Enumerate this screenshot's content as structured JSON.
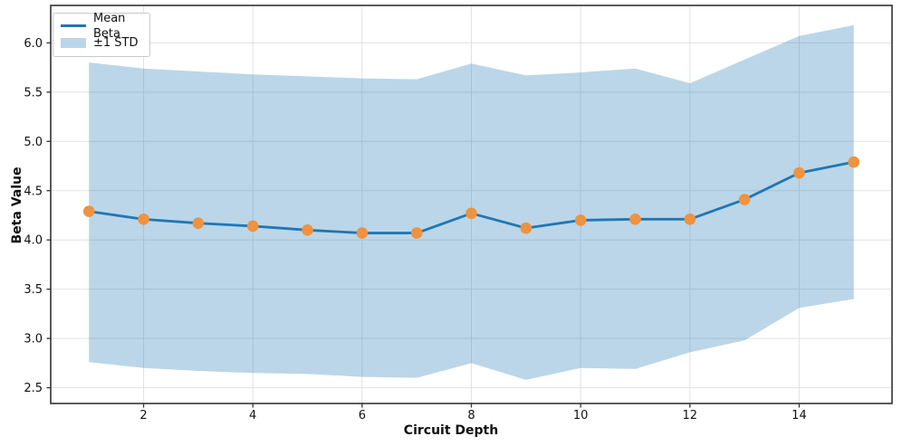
{
  "chart_data": {
    "type": "line",
    "title": "",
    "xlabel": "Circuit Depth",
    "ylabel": "Beta Value",
    "x": [
      1,
      2,
      3,
      4,
      5,
      6,
      7,
      8,
      9,
      10,
      11,
      12,
      13,
      14,
      15
    ],
    "series": [
      {
        "name": "Mean Beta",
        "kind": "line-with-markers",
        "values": [
          4.29,
          4.21,
          4.17,
          4.14,
          4.1,
          4.07,
          4.07,
          4.27,
          4.12,
          4.2,
          4.21,
          4.21,
          4.41,
          4.68,
          4.79
        ],
        "line_color": "#1f77b4",
        "marker_color": "#f0923e"
      },
      {
        "name": "±1 STD",
        "kind": "band",
        "upper": [
          5.8,
          5.74,
          5.71,
          5.68,
          5.66,
          5.64,
          5.63,
          5.79,
          5.67,
          5.7,
          5.74,
          5.59,
          5.83,
          6.07,
          6.18
        ],
        "lower": [
          2.76,
          2.7,
          2.67,
          2.65,
          2.64,
          2.61,
          2.6,
          2.75,
          2.58,
          2.7,
          2.69,
          2.86,
          2.98,
          3.31,
          3.4
        ],
        "fill_color": "#1f77b4",
        "fill_opacity": 0.3
      }
    ],
    "xticks": [
      2,
      4,
      6,
      8,
      10,
      12,
      14
    ],
    "xtick_labels": [
      "2",
      "4",
      "6",
      "8",
      "10",
      "12",
      "14"
    ],
    "yticks": [
      2.5,
      3.0,
      3.5,
      4.0,
      4.5,
      5.0,
      5.5,
      6.0
    ],
    "ytick_labels": [
      "2.5",
      "3.0",
      "3.5",
      "4.0",
      "4.5",
      "5.0",
      "5.5",
      "6.0"
    ],
    "xlim": [
      0.3,
      15.7
    ],
    "ylim": [
      2.34,
      6.38
    ],
    "grid": true,
    "grid_color": "#e2e2e2",
    "spine_color": "#333333",
    "tick_text_color": "#111111",
    "legend_position": "upper-left"
  },
  "legend": {
    "items": [
      {
        "label": "Mean Beta",
        "swatch": "line"
      },
      {
        "label": "±1 STD",
        "swatch": "patch"
      }
    ]
  }
}
